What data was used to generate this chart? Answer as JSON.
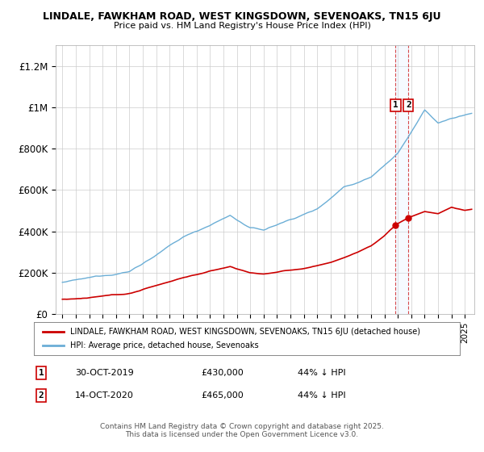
{
  "title1": "LINDALE, FAWKHAM ROAD, WEST KINGSDOWN, SEVENOAKS, TN15 6JU",
  "title2": "Price paid vs. HM Land Registry's House Price Index (HPI)",
  "legend_red": "LINDALE, FAWKHAM ROAD, WEST KINGSDOWN, SEVENOAKS, TN15 6JU (detached house)",
  "legend_blue": "HPI: Average price, detached house, Sevenoaks",
  "annotation1_date": "30-OCT-2019",
  "annotation1_price": "£430,000",
  "annotation1_hpi": "44% ↓ HPI",
  "annotation2_date": "14-OCT-2020",
  "annotation2_price": "£465,000",
  "annotation2_hpi": "44% ↓ HPI",
  "footer": "Contains HM Land Registry data © Crown copyright and database right 2025.\nThis data is licensed under the Open Government Licence v3.0.",
  "red_color": "#cc0000",
  "blue_color": "#6baed6",
  "shade_color": "#ddeeff",
  "background_color": "#ffffff",
  "grid_color": "#cccccc",
  "ylim": [
    0,
    1300000
  ],
  "yticks": [
    0,
    200000,
    400000,
    600000,
    800000,
    1000000,
    1200000
  ],
  "ytick_labels": [
    "£0",
    "£200K",
    "£400K",
    "£600K",
    "£800K",
    "£1M",
    "£1.2M"
  ],
  "sale1_x": 2019.83,
  "sale1_y": 430000,
  "sale2_x": 2020.79,
  "sale2_y": 465000,
  "xmin": 1994.5,
  "xmax": 2025.7
}
